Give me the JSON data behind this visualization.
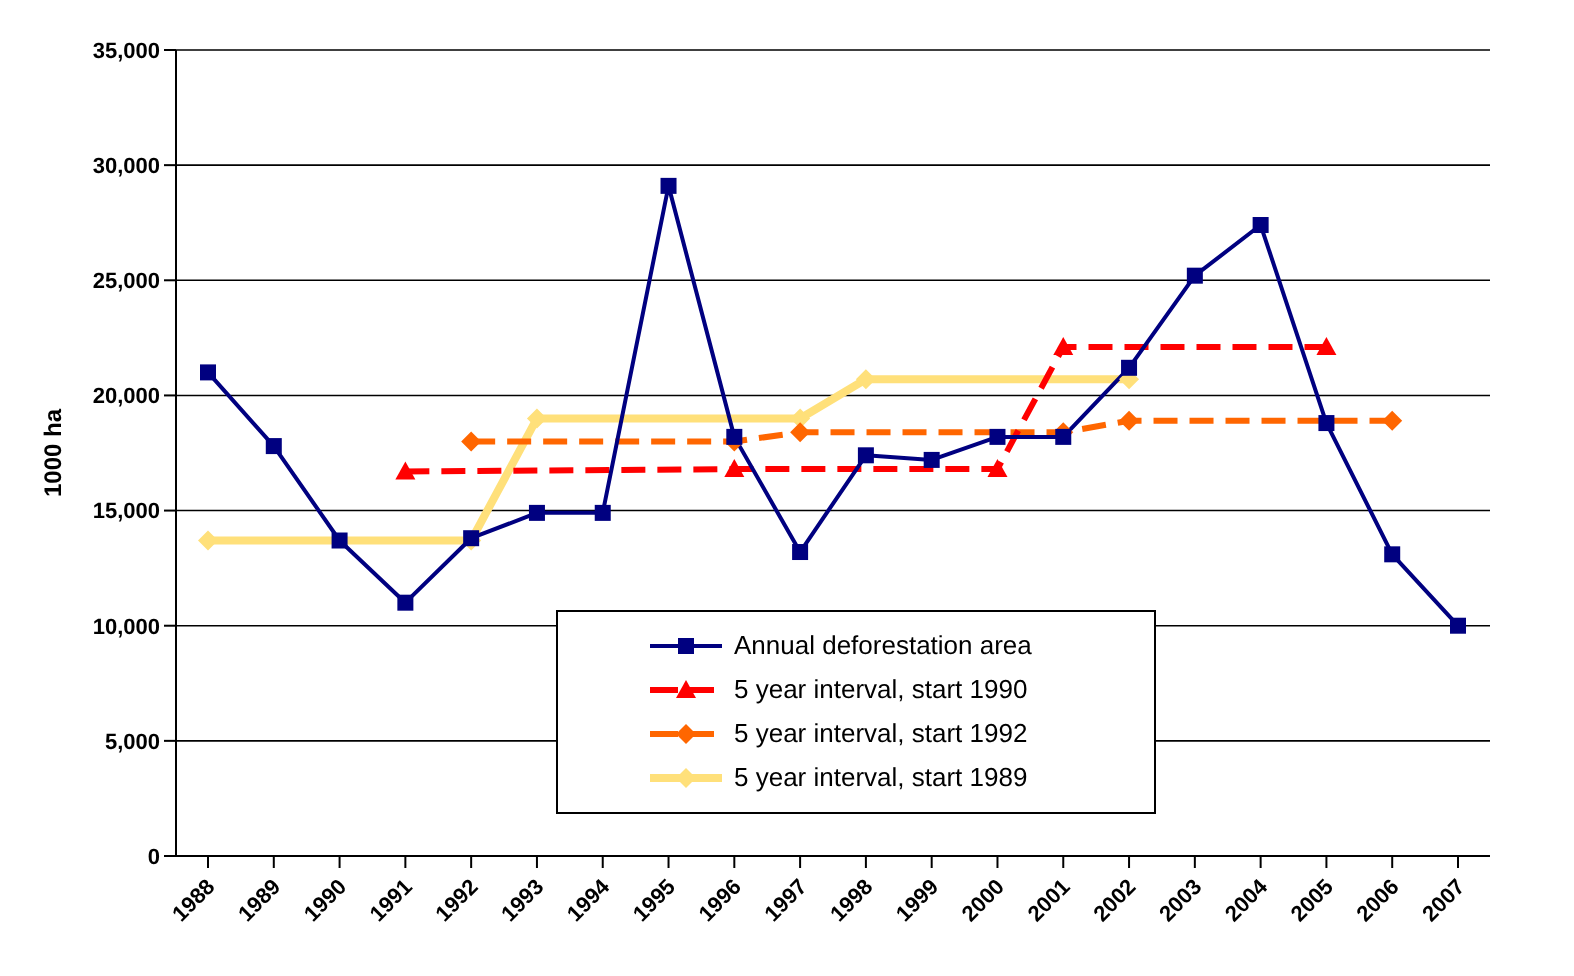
{
  "chart_data": {
    "type": "line",
    "ylabel": "1000 ha",
    "categories": [
      "1988",
      "1989",
      "1990",
      "1991",
      "1992",
      "1993",
      "1994",
      "1995",
      "1996",
      "1997",
      "1998",
      "1999",
      "2000",
      "2001",
      "2002",
      "2003",
      "2004",
      "2005",
      "2006",
      "2007"
    ],
    "series": [
      {
        "name": "Annual deforestation area",
        "color": "#000080",
        "marker": "square",
        "line_style": "solid",
        "values": [
          21000,
          17800,
          13700,
          11000,
          13800,
          14900,
          14900,
          29100,
          18200,
          13200,
          17400,
          17200,
          18200,
          18200,
          21200,
          25200,
          27400,
          18800,
          13100,
          10000
        ]
      },
      {
        "name": "5 year interval, start 1990",
        "color": "#ff0000",
        "marker": "triangle",
        "line_style": "dashed",
        "values": [
          null,
          null,
          null,
          16700,
          null,
          null,
          null,
          null,
          16800,
          null,
          null,
          null,
          16800,
          22100,
          null,
          null,
          null,
          22100,
          null,
          null
        ]
      },
      {
        "name": "5 year interval, start 1992",
        "color": "#ff6600",
        "marker": "diamond",
        "line_style": "dashed",
        "values": [
          null,
          null,
          null,
          null,
          18000,
          null,
          null,
          null,
          18000,
          18400,
          null,
          null,
          null,
          18400,
          18900,
          null,
          null,
          null,
          18900,
          null
        ]
      },
      {
        "name": "5 year interval, start 1989",
        "color": "#ffe07a",
        "marker": "diamond",
        "line_style": "solid",
        "values": [
          13700,
          null,
          null,
          null,
          13700,
          19000,
          null,
          null,
          null,
          19000,
          20700,
          null,
          null,
          null,
          20700,
          null,
          null,
          null,
          null,
          null
        ]
      }
    ],
    "ylim": [
      0,
      35000
    ],
    "yticks": [
      0,
      {
        "value": 5000,
        "label": "5,000"
      },
      {
        "value": 10000,
        "label": "10,000"
      },
      {
        "value": 15000,
        "label": "15,000"
      },
      {
        "value": 20000,
        "label": "20,000"
      },
      {
        "value": 25000,
        "label": "25,000"
      },
      {
        "value": 30000,
        "label": "30,000"
      },
      {
        "value": 35000,
        "label": "35,000"
      }
    ],
    "grid": "y",
    "legend": "bottom right"
  }
}
